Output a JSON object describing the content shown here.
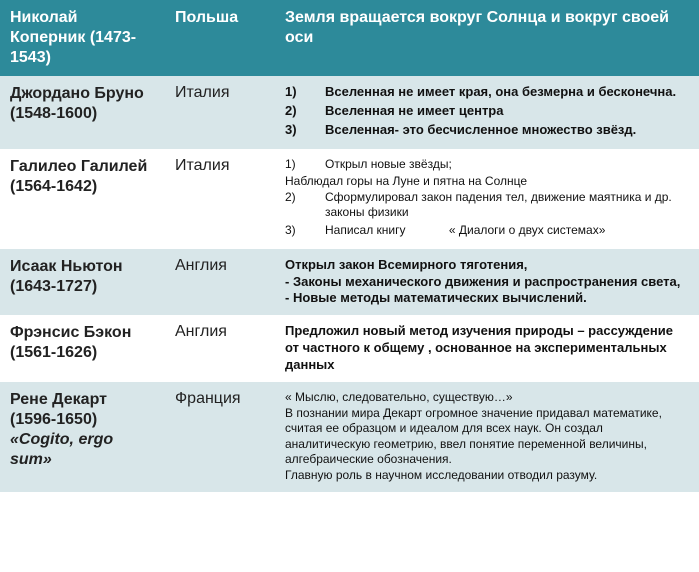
{
  "rows": [
    {
      "name_line1": "Николай",
      "name_line2": "Коперник (1473-1543)",
      "country": "Польша",
      "content_text": "Земля вращается вокруг Солнца и вокруг своей оси"
    },
    {
      "name_line1": "Джордано Бруно",
      "name_line2": "(1548-1600)",
      "country": "Италия",
      "items": [
        "Вселенная не имеет края, она безмерна и бесконечна.",
        "Вселенная не имеет центра",
        "Вселенная- это бесчисленное множество звёзд."
      ]
    },
    {
      "name_line1": "Галилео Галилей",
      "name_line2": "(1564-1642)",
      "country": "Италия",
      "g1": "Открыл новые звёзды;",
      "g1b": "Наблюдал горы на Луне и пятна на Солнце",
      "g2": "Сформулировал закон падения тел, движение маятника и др. законы физики",
      "g3a": "Написал книгу",
      "g3b": "« Диалоги о двух системах»"
    },
    {
      "name_line1": "Исаак Ньютон",
      "name_line2": "(1643-1727)",
      "country": "Англия",
      "lines": [
        "Открыл закон Всемирного тяготения,",
        "- Законы механического движения и распространения света,",
        "- Новые методы математических вычислений."
      ]
    },
    {
      "name_line1": "Фрэнсис Бэкон",
      "name_line2": " (1561-1626)",
      "country": "Англия",
      "content_text": "Предложил новый метод изучения природы – рассуждение от частного к общему , основанное на экспериментальных данных"
    },
    {
      "name_line1": "Рене Декарт",
      "name_line2": "(1596-1650)",
      "name_sub": "«Cogito, ergo sum»",
      "country": "Франция",
      "lines": [
        "« Мыслю, следовательно,  существую…»",
        "В познании мира Декарт огромное значение придавал математике, считая ее образцом и идеалом для всех наук.  Он создал аналитическую геометрию, ввел понятие переменной величины, алгебраические обозначения.",
        "Главную роль в научном исследовании отводил разуму."
      ]
    }
  ]
}
